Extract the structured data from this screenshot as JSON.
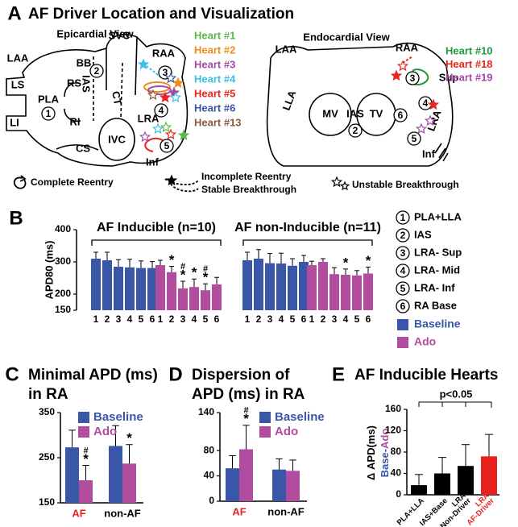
{
  "panel_a": {
    "letter": "A",
    "title": "AF Driver Location and Visualization",
    "epicardial": {
      "title": "Epicardial View",
      "labels": [
        "LAA",
        "LS",
        "LI",
        "PLA",
        "BB",
        "RS",
        "RI",
        "SVC",
        "IAS",
        "CT",
        "RAA",
        "LRA",
        "IVC",
        "CS",
        "Inf"
      ],
      "sites": [
        "1",
        "2",
        "3",
        "4",
        "5"
      ],
      "hearts": [
        {
          "name": "Heart #1",
          "color": "#5cb947"
        },
        {
          "name": "Heart #2",
          "color": "#f28a1c"
        },
        {
          "name": "Heart #3",
          "color": "#a34aa6"
        },
        {
          "name": "Heart #4",
          "color": "#3cc1e6"
        },
        {
          "name": "Heart #5",
          "color": "#e8251c"
        },
        {
          "name": "Heart #6",
          "color": "#3953a4"
        },
        {
          "name": "Heart #13",
          "color": "#8b5a3c"
        }
      ]
    },
    "endocardial": {
      "title": "Endocardial View",
      "labels": [
        "LAA",
        "LLA",
        "MV",
        "IAS",
        "TV",
        "RAA",
        "Sup",
        "LRA",
        "Inf"
      ],
      "sites": [
        "2",
        "3",
        "4",
        "5",
        "6"
      ],
      "hearts": [
        {
          "name": "Heart #10",
          "color": "#1e9a3c"
        },
        {
          "name": "Heart #18",
          "color": "#e8251c"
        },
        {
          "name": "Heart #19",
          "color": "#a34aa6"
        }
      ]
    },
    "legend": [
      "Complete Reentry",
      "Incomplete Reentry",
      "Stable Breakthrough",
      "Unstable Breakthrough"
    ]
  },
  "chart_data": [
    {
      "type": "bar",
      "panel": "B",
      "ylabel": "APD80 (ms)",
      "ylim": [
        150,
        400
      ],
      "yticks": [
        150,
        200,
        300,
        400
      ],
      "categories": [
        "1",
        "2",
        "3",
        "4",
        "5",
        "6"
      ],
      "groups": [
        {
          "label": "AF Inducible (n=10)",
          "series": [
            {
              "color": "#3a56a8",
              "values": [
                310,
                305,
                285,
                283,
                281,
                281
              ],
              "errors": [
                20,
                25,
                22,
                25,
                22,
                20
              ]
            },
            {
              "color": "#b24c9e",
              "values": [
                290,
                268,
                218,
                222,
                212,
                230
              ],
              "errors": [
                15,
                18,
                22,
                25,
                20,
                22
              ],
              "annotations": [
                null,
                [
                  "*"
                ],
                [
                  "#",
                  "*"
                ],
                [
                  "*"
                ],
                [
                  "#",
                  "*"
                ],
                null
              ]
            }
          ]
        },
        {
          "label": "AF non-Inducible (n=11)",
          "series": [
            {
              "color": "#3a56a8",
              "values": [
                305,
                310,
                296,
                295,
                288,
                300
              ],
              "errors": [
                25,
                28,
                30,
                32,
                22,
                20
              ]
            },
            {
              "color": "#b24c9e",
              "values": [
                290,
                300,
                262,
                260,
                258,
                264
              ],
              "errors": [
                12,
                10,
                20,
                18,
                15,
                20
              ],
              "annotations": [
                null,
                null,
                null,
                [
                  "*"
                ],
                null,
                [
                  "*"
                ]
              ]
            }
          ]
        }
      ],
      "site_legend": [
        {
          "number": "1",
          "label": "PLA+LLA"
        },
        {
          "number": "2",
          "label": "IAS"
        },
        {
          "number": "3",
          "label": "LRA- Sup"
        },
        {
          "number": "4",
          "label": "LRA- Mid"
        },
        {
          "number": "5",
          "label": "LRA- Inf"
        },
        {
          "number": "6",
          "label": "RA Base"
        }
      ],
      "legend": [
        {
          "name": "Baseline",
          "color": "#3a56a8"
        },
        {
          "name": "Ado",
          "color": "#b24c9e"
        }
      ]
    },
    {
      "type": "bar",
      "panel": "C",
      "title": [
        "Minimal APD (ms)",
        "in RA"
      ],
      "ylim": [
        150,
        350
      ],
      "yticks": [
        150,
        250,
        350
      ],
      "categories": [
        "AF",
        "non-AF"
      ],
      "category_colors": [
        "#e8231f",
        "#000000"
      ],
      "series": [
        {
          "name": "Baseline",
          "color": "#3a56a8",
          "values": [
            273,
            276
          ],
          "errors": [
            38,
            45
          ]
        },
        {
          "name": "Ado",
          "color": "#b24c9e",
          "values": [
            200,
            237
          ],
          "errors": [
            33,
            42
          ],
          "annotations": [
            [
              "#",
              "*"
            ],
            [
              "*"
            ]
          ]
        }
      ]
    },
    {
      "type": "bar",
      "panel": "D",
      "title": [
        "Dispersion of",
        "APD (ms) in RA"
      ],
      "ylim": [
        0,
        140
      ],
      "yticks": [
        0,
        40,
        80,
        140
      ],
      "categories": [
        "AF",
        "non-AF"
      ],
      "category_colors": [
        "#e8231f",
        "#000000"
      ],
      "series": [
        {
          "name": "Baseline",
          "color": "#3a56a8",
          "values": [
            52,
            50
          ],
          "errors": [
            20,
            17
          ]
        },
        {
          "name": "Ado",
          "color": "#b24c9e",
          "values": [
            82,
            48
          ],
          "errors": [
            38,
            17
          ],
          "annotations": [
            [
              "#",
              "*"
            ],
            null
          ]
        }
      ]
    },
    {
      "type": "bar",
      "panel": "E",
      "title": "AF Inducible Hearts",
      "ylabel": [
        [
          {
            "text": "Δ APD(ms)",
            "color": "#000000"
          }
        ],
        [
          {
            "text": "Base-",
            "color": "#3a56a8"
          },
          {
            "text": "Ado",
            "color": "#b24c9e"
          }
        ]
      ],
      "ylim": [
        0,
        160
      ],
      "yticks": [
        0,
        40,
        80,
        120,
        160
      ],
      "categories": [
        [
          "PLA+LLA"
        ],
        [
          "IAS+Base"
        ],
        [
          "LRA",
          "Non-Driver"
        ],
        [
          "LRA",
          "AF-Driver"
        ]
      ],
      "category_colors": [
        "#000000",
        "#000000",
        "#000000",
        "#e8231f"
      ],
      "values": [
        18,
        40,
        54,
        72
      ],
      "errors": [
        20,
        30,
        40,
        41
      ],
      "colors": [
        "#000000",
        "#000000",
        "#000000",
        "#e8231f"
      ],
      "annotation": "p<0.05"
    }
  ]
}
